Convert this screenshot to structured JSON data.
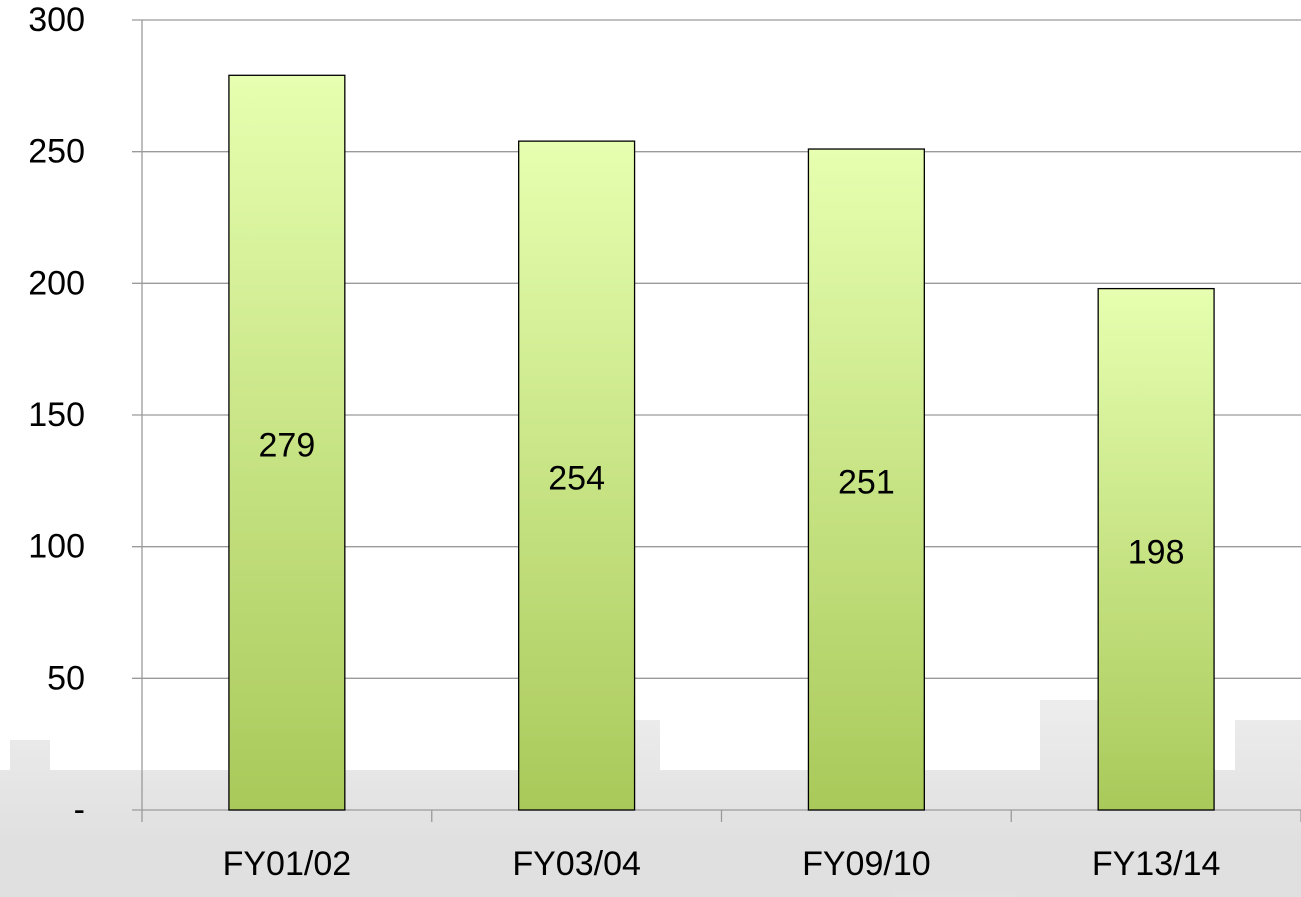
{
  "chart_data": {
    "type": "bar",
    "categories": [
      "FY01/02",
      "FY03/04",
      "FY09/10",
      "FY13/14"
    ],
    "values": [
      279,
      254,
      251,
      198
    ],
    "color": "#c2e07a",
    "ylim": [
      0,
      300
    ],
    "yticks": [
      {
        "value": 0,
        "label": "-"
      },
      50,
      100,
      150,
      200,
      250,
      300
    ],
    "grid": true
  }
}
